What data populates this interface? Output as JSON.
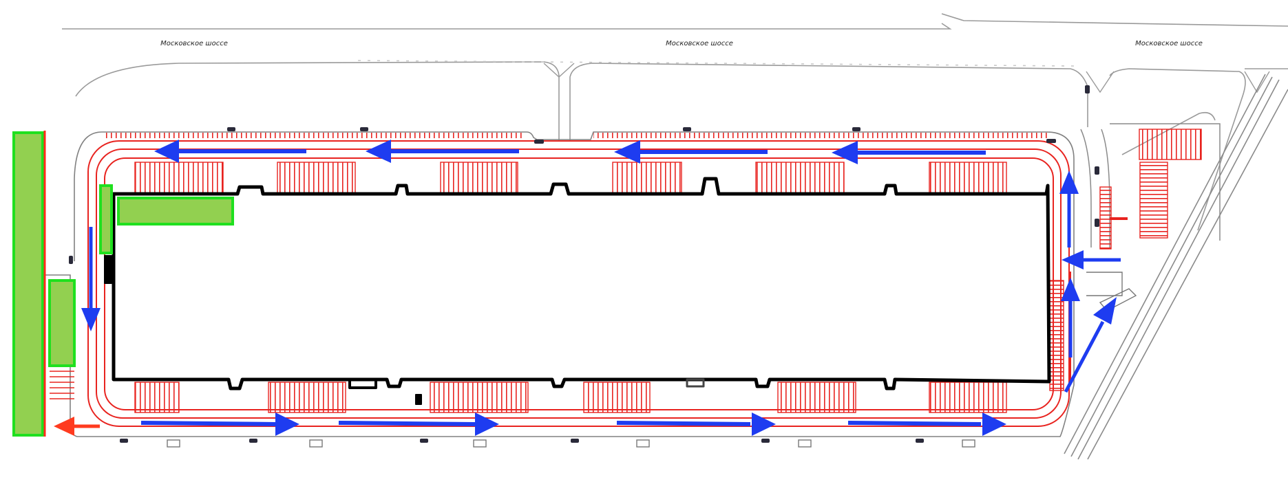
{
  "road_labels": [
    "Московское шоссе",
    "Московское шоссе",
    "Московское шоссе"
  ],
  "colors": {
    "background": "#ffffff",
    "road_line": "#9a9a9a",
    "building_outline": "#000000",
    "lane_marking": "#e8231f",
    "parking_hatch": "#e8231f",
    "flow_arrow": "#1e3cf0",
    "green_zone_fill": "#92d050",
    "green_zone_border": "#1fe01f",
    "exit_arrow": "#ff3b1f"
  },
  "icons": {
    "flow_arrow": "traffic-flow-arrow-icon",
    "exit_arrow": "exit-arrow-icon",
    "car": "car-icon"
  }
}
